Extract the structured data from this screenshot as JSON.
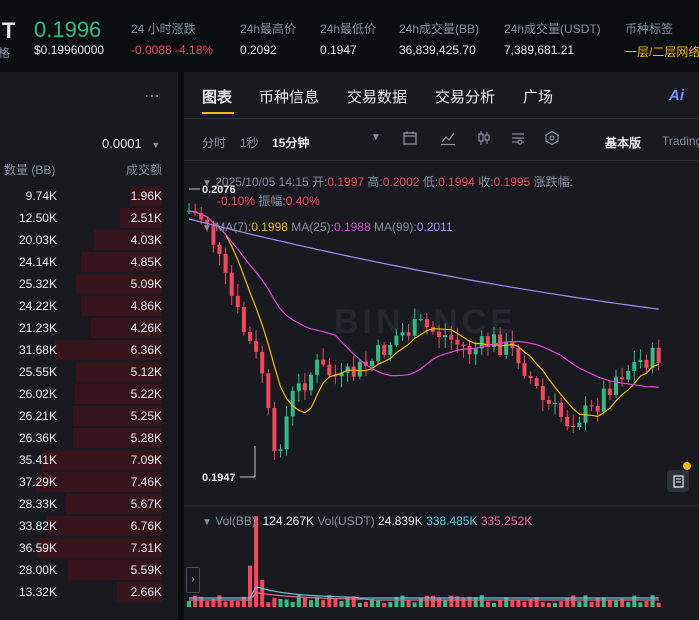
{
  "header": {
    "symbol_fragment": "T",
    "symbol_sub": "格",
    "last_price": "0.1996",
    "last_price_usd": "$0.19960000",
    "stats": [
      {
        "label": "24 小时涨跌",
        "value": "-0.0088 -4.18%"
      },
      {
        "label": "24h最高价",
        "value": "0.2092"
      },
      {
        "label": "24h最低价",
        "value": "0.1947"
      },
      {
        "label": "24h成交量(BB)",
        "value": "36,839,425.70"
      },
      {
        "label": "24h成交量(USDT)",
        "value": "7,389,681.21"
      },
      {
        "label": "币种标签",
        "value": "一层/二层网络"
      }
    ]
  },
  "orderbook": {
    "menu_icon": "more-dots-icon",
    "precision": "0.0001",
    "col_qty": "数量 (BB)",
    "col_amount": "成交额",
    "rows": [
      {
        "qty": "9.74K",
        "amount": "1.96K",
        "depth": 0.2
      },
      {
        "qty": "12.50K",
        "amount": "2.51K",
        "depth": 0.26
      },
      {
        "qty": "20.03K",
        "amount": "4.03K",
        "depth": 0.42
      },
      {
        "qty": "24.14K",
        "amount": "4.85K",
        "depth": 0.5
      },
      {
        "qty": "25.32K",
        "amount": "5.09K",
        "depth": 0.53
      },
      {
        "qty": "24.22K",
        "amount": "4.86K",
        "depth": 0.5
      },
      {
        "qty": "21.23K",
        "amount": "4.26K",
        "depth": 0.44
      },
      {
        "qty": "31.68K",
        "amount": "6.36K",
        "depth": 0.66
      },
      {
        "qty": "25.55K",
        "amount": "5.12K",
        "depth": 0.53
      },
      {
        "qty": "26.02K",
        "amount": "5.22K",
        "depth": 0.54
      },
      {
        "qty": "26.21K",
        "amount": "5.25K",
        "depth": 0.55
      },
      {
        "qty": "26.36K",
        "amount": "5.28K",
        "depth": 0.55
      },
      {
        "qty": "35.41K",
        "amount": "7.09K",
        "depth": 0.74
      },
      {
        "qty": "37.29K",
        "amount": "7.46K",
        "depth": 0.78
      },
      {
        "qty": "28.33K",
        "amount": "5.67K",
        "depth": 0.59
      },
      {
        "qty": "33.82K",
        "amount": "6.76K",
        "depth": 0.71
      },
      {
        "qty": "36.59K",
        "amount": "7.31K",
        "depth": 0.77
      },
      {
        "qty": "28.00K",
        "amount": "5.59K",
        "depth": 0.58
      },
      {
        "qty": "13.32K",
        "amount": "2.66K",
        "depth": 0.28
      }
    ]
  },
  "chart_panel": {
    "tabs": [
      "图表",
      "币种信息",
      "交易数据",
      "交易分析",
      "广场"
    ],
    "ai_label": "Ai",
    "intervals": [
      "分时",
      "1秒",
      "15分钟"
    ],
    "view_basic": "基本版",
    "view_tv": "Trading",
    "ohlc": {
      "time": "2025/10/05 14:15",
      "open_label": "开:",
      "open": "0.1997",
      "high_label": "高:",
      "high": "0.2002",
      "low_label": "低:",
      "low": "0.1994",
      "close_label": "收:",
      "close": "0.1995",
      "change_label": "涨跌幅:",
      "change": "-0.10%",
      "amp_label": "振幅:",
      "amp": "0.40%"
    },
    "ma": {
      "ma7_label": "MA(7):",
      "ma7": "0.1998",
      "ma25_label": "MA(25):",
      "ma25": "0.1988",
      "ma99_label": "MA(99):",
      "ma99": "0.2011"
    },
    "vol": {
      "vol_bb_label": "Vol(BB):",
      "vol_bb": "124.267K",
      "vol_usdt_label": "Vol(USDT)",
      "vol_usdt": "24.839K",
      "v1": "338.485K",
      "v2": "335.252K"
    },
    "high_marker": "0.2076",
    "low_marker": "0.1947",
    "watermark": "BINANCE"
  },
  "colors": {
    "up": "#2ebd85",
    "down": "#f6465d",
    "ma7": "#f0b90b",
    "ma25": "#d54ad0",
    "ma99": "#a38bf0",
    "bg": "#0b0e11",
    "panel": "#181a20",
    "muted": "#848e9c"
  }
}
